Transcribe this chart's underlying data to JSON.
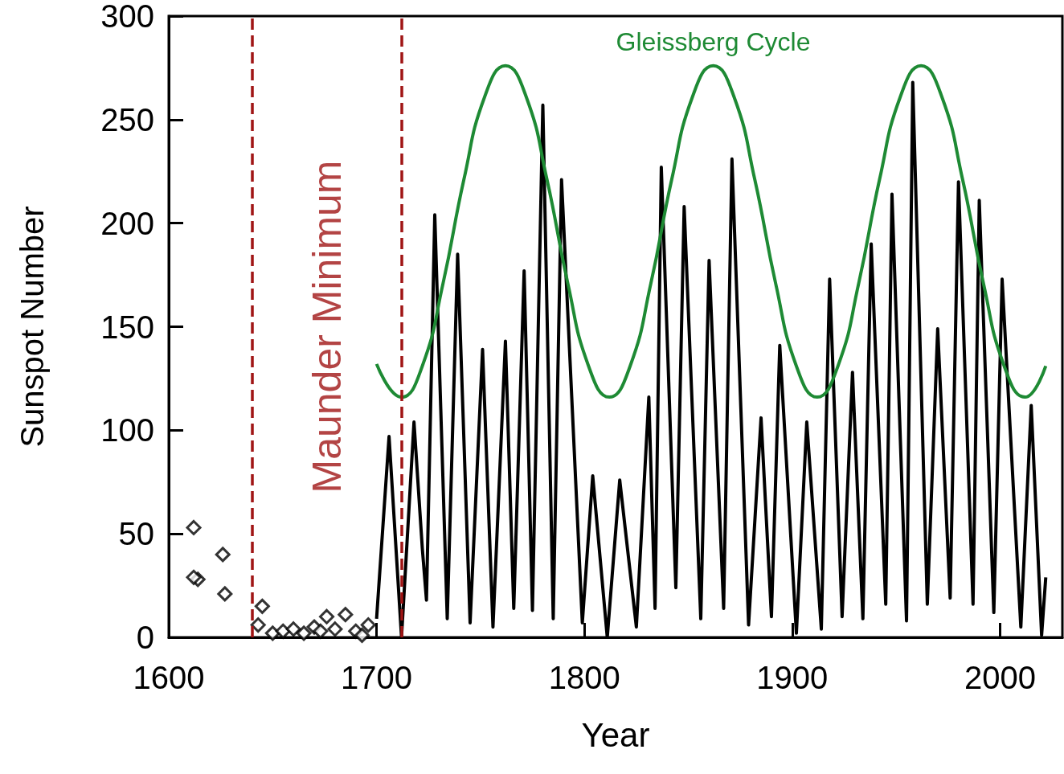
{
  "chart_data": {
    "type": "line",
    "xlabel": "Year",
    "ylabel": "Sunspot Number",
    "xlim": [
      1600,
      2030
    ],
    "xticks": [
      1600,
      1700,
      1800,
      1900,
      2000
    ],
    "ylim": [
      0,
      300
    ],
    "yticks": [
      0,
      50,
      100,
      150,
      200,
      250,
      300
    ],
    "grid": false,
    "legend": false,
    "series": [
      {
        "type": "scatter",
        "marker": "diamond",
        "color": "#000000",
        "x": [
          1612,
          1614,
          1612,
          1626,
          1627,
          1643,
          1645,
          1650,
          1655,
          1660,
          1665,
          1670,
          1673,
          1676,
          1680,
          1685,
          1690,
          1693,
          1696
        ],
        "values": [
          53,
          28,
          29,
          40,
          21,
          6,
          15,
          2,
          3,
          4,
          2,
          5,
          3,
          10,
          4,
          11,
          3,
          1,
          6
        ]
      },
      {
        "marker": "none",
        "color": "#000000",
        "x": [
          1700,
          1706,
          1712,
          1718,
          1722,
          1724,
          1728,
          1734,
          1739,
          1745,
          1751,
          1756,
          1762,
          1766,
          1771,
          1775,
          1780,
          1785,
          1789,
          1799,
          1804,
          1811,
          1817,
          1825,
          1831,
          1834,
          1837,
          1844,
          1848,
          1856,
          1860,
          1867,
          1871,
          1879,
          1885,
          1890,
          1894,
          1902,
          1907,
          1914,
          1918,
          1924,
          1929,
          1934,
          1938,
          1945,
          1948,
          1955,
          1958,
          1965,
          1970,
          1976,
          1980,
          1987,
          1990,
          1997,
          2001,
          2010,
          2015,
          2020,
          2022
        ],
        "values": [
          9,
          97,
          0,
          104,
          43,
          18,
          204,
          9,
          185,
          7,
          139,
          5,
          143,
          14,
          177,
          13,
          257,
          9,
          221,
          7,
          78,
          0,
          76,
          5,
          116,
          14,
          227,
          24,
          208,
          9,
          182,
          14,
          231,
          6,
          106,
          10,
          141,
          2,
          104,
          4,
          173,
          10,
          128,
          9,
          190,
          16,
          214,
          8,
          268,
          16,
          149,
          19,
          220,
          16,
          211,
          12,
          173,
          5,
          112,
          1,
          29
        ]
      },
      {
        "name": "Gleissberg Cycle",
        "marker": "none",
        "color": "#1e8a34",
        "x": [
          1700,
          1712,
          1722,
          1732,
          1742,
          1752,
          1762,
          1772,
          1782,
          1792,
          1802,
          1812,
          1822,
          1832,
          1842,
          1852,
          1862,
          1872,
          1882,
          1892,
          1902,
          1912,
          1922,
          1932,
          1942,
          1952,
          1962,
          1972,
          1982,
          1992,
          2002,
          2012,
          2022
        ],
        "values": [
          132,
          116,
          131,
          171,
          221,
          261,
          276,
          261,
          221,
          171,
          131,
          116,
          131,
          171,
          221,
          261,
          276,
          261,
          221,
          171,
          131,
          116,
          131,
          171,
          221,
          261,
          276,
          261,
          221,
          171,
          131,
          116,
          131
        ]
      }
    ],
    "ref_lines": [
      {
        "axis": "x",
        "value": 1640,
        "label": null,
        "color": "#a01515",
        "line_style": "dashed"
      },
      {
        "axis": "x",
        "value": 1712,
        "label": null,
        "color": "#a01515",
        "line_style": "dashed"
      }
    ],
    "annotations": [
      "Maunder Minimum"
    ]
  }
}
